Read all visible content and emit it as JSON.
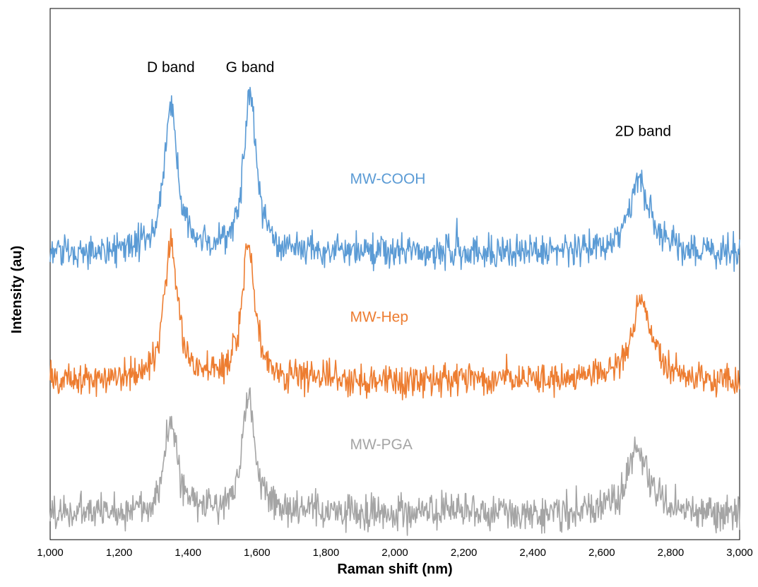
{
  "chart_data": {
    "type": "line",
    "title": "",
    "xlabel": "Raman shift (nm)",
    "ylabel": "Intensity (au)",
    "xlim": [
      1000,
      3000
    ],
    "ylim": [
      0,
      100
    ],
    "xticks": [
      1000,
      1200,
      1400,
      1600,
      1800,
      2000,
      2200,
      2400,
      2600,
      2800,
      3000
    ],
    "xtick_labels": [
      "1,000",
      "1,200",
      "1,400",
      "1,600",
      "1,800",
      "2,000",
      "2,200",
      "2,400",
      "2,600",
      "2,800",
      "3,000"
    ],
    "grid": false,
    "legend": "none",
    "annotations": [
      {
        "text": "D band",
        "x": 1350,
        "y": 88
      },
      {
        "text": "G band",
        "x": 1580,
        "y": 88
      },
      {
        "text": "2D band",
        "x": 2720,
        "y": 76
      }
    ],
    "series": [
      {
        "name": "MW-COOH",
        "color": "#5b9bd5",
        "label_at": {
          "x": 1870,
          "y": 67
        },
        "baseline": 54,
        "noise": 2.2,
        "peaks": [
          {
            "x": 1350,
            "height": 28,
            "width": 22
          },
          {
            "x": 1580,
            "height": 30,
            "width": 22
          },
          {
            "x": 2180,
            "height": 6,
            "width": 3
          },
          {
            "x": 2710,
            "height": 14,
            "width": 35
          }
        ]
      },
      {
        "name": "MW-Hep",
        "color": "#ed7d31",
        "label_at": {
          "x": 1870,
          "y": 41
        },
        "baseline": 30,
        "noise": 2.2,
        "peaks": [
          {
            "x": 1350,
            "height": 27,
            "width": 22
          },
          {
            "x": 1575,
            "height": 26,
            "width": 22
          },
          {
            "x": 2325,
            "height": 3,
            "width": 3
          },
          {
            "x": 2715,
            "height": 15,
            "width": 35
          }
        ]
      },
      {
        "name": "MW-PGA",
        "color": "#a5a5a5",
        "label_at": {
          "x": 1870,
          "y": 17
        },
        "baseline": 5,
        "noise": 2.4,
        "peaks": [
          {
            "x": 1350,
            "height": 17,
            "width": 22
          },
          {
            "x": 1575,
            "height": 22,
            "width": 22
          },
          {
            "x": 2705,
            "height": 12,
            "width": 35
          }
        ]
      }
    ]
  }
}
